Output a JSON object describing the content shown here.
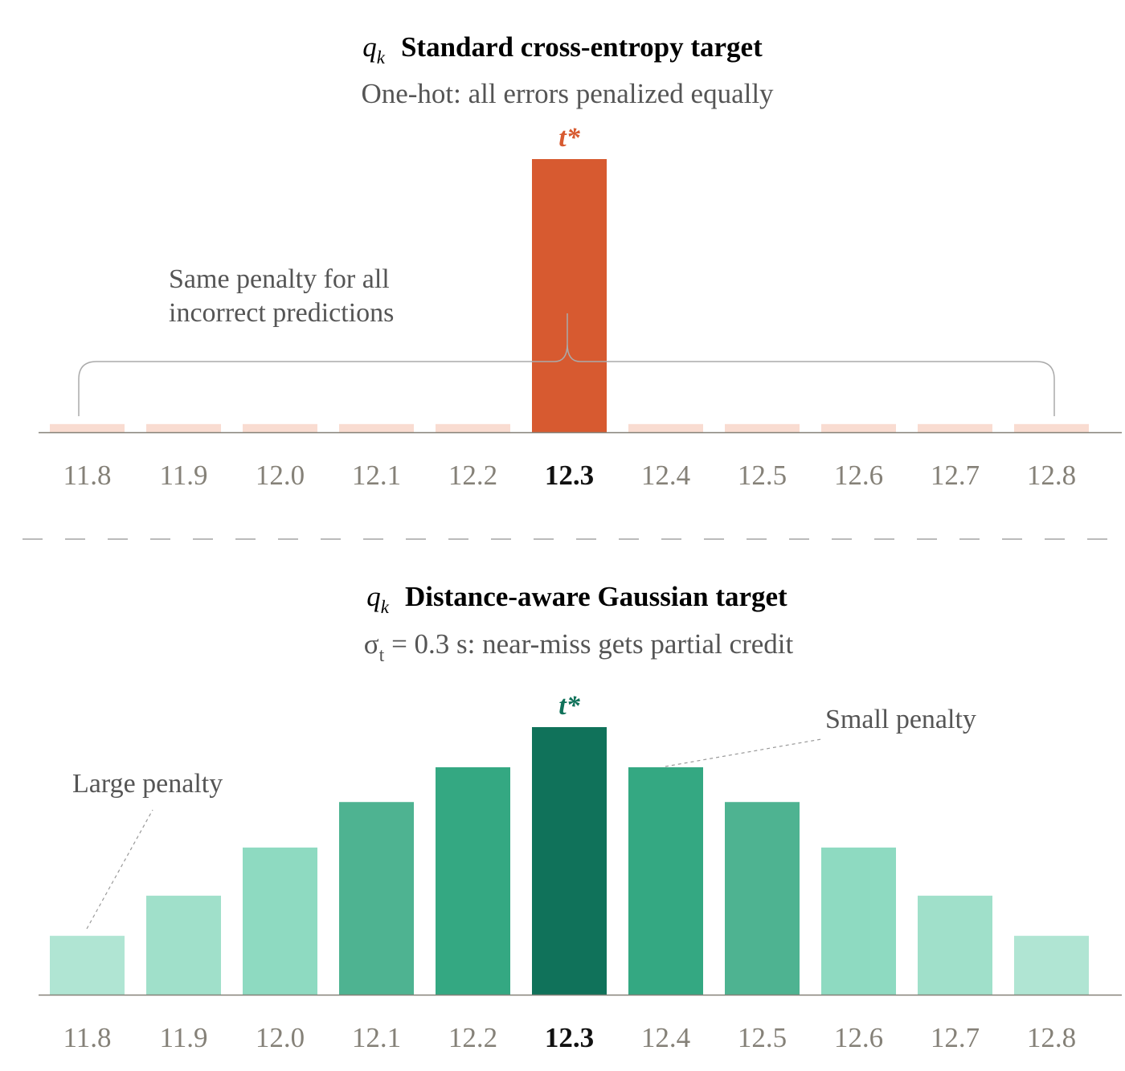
{
  "colors": {
    "onehot_target": "#D75A30",
    "onehot_other": "#F9DCD1",
    "gaussian_levels": [
      "#B0E5D3",
      "#A0E0CA",
      "#8EDAC1",
      "#4EB391",
      "#34A882",
      "#10725A"
    ],
    "onehot_tstar": "#D75A30",
    "gaussian_tstar": "#10725A",
    "tick_muted": "#858178",
    "tick_bold": "#111111",
    "axis": "#858178",
    "annotation": "#555555",
    "divider": "#bbbbbb"
  },
  "chart_data": [
    {
      "type": "bar",
      "title_symbol": "q",
      "title_symbol_sub": "k",
      "title": "Standard cross-entropy target",
      "subtitle": "One-hot: all errors penalized equally",
      "categories": [
        "11.8",
        "11.9",
        "12.0",
        "12.1",
        "12.2",
        "12.3",
        "12.4",
        "12.5",
        "12.6",
        "12.7",
        "12.8"
      ],
      "values": [
        0.03,
        0.03,
        0.03,
        0.03,
        0.03,
        1.0,
        0.03,
        0.03,
        0.03,
        0.03,
        0.03
      ],
      "highlight_index": 5,
      "peak_label": "t*",
      "annotations": [
        {
          "text_lines": [
            "Same penalty for all",
            "incorrect predictions"
          ]
        }
      ],
      "ylim": [
        0,
        1
      ],
      "grid": false
    },
    {
      "type": "bar",
      "title_symbol": "q",
      "title_symbol_sub": "k",
      "title": "Distance-aware Gaussian target",
      "subtitle_prefix": "σ",
      "subtitle_sub": "t",
      "subtitle_rest": " = 0.3 s: near-miss gets partial credit",
      "categories": [
        "11.8",
        "11.9",
        "12.0",
        "12.1",
        "12.2",
        "12.3",
        "12.4",
        "12.5",
        "12.6",
        "12.7",
        "12.8"
      ],
      "values": [
        0.22,
        0.37,
        0.55,
        0.72,
        0.85,
        1.0,
        0.85,
        0.72,
        0.55,
        0.37,
        0.22
      ],
      "highlight_index": 5,
      "peak_label": "t*",
      "annotations": [
        {
          "text": "Large penalty",
          "target_index": 0
        },
        {
          "text": "Small penalty",
          "target_index": 6
        }
      ],
      "ylim": [
        0,
        1
      ],
      "grid": false
    }
  ]
}
